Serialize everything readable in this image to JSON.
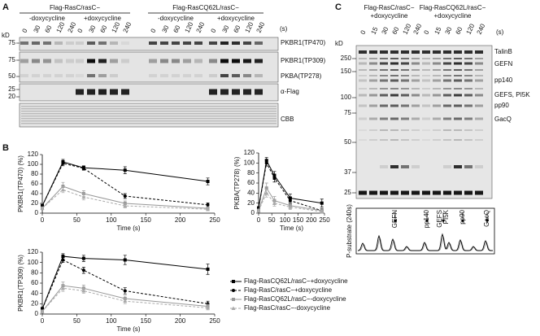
{
  "panel_a": {
    "label": "A",
    "strains": [
      "Flag-RasC/rasC−",
      "Flag-RasCQ62L/rasC−"
    ],
    "conditions": [
      "-doxycycline",
      "+doxycycline"
    ],
    "times": [
      "0",
      "30",
      "60",
      "120",
      "240"
    ],
    "time_unit": "(s)",
    "mass_unit": "kD",
    "markers": [
      "75",
      "75",
      "50",
      "25",
      "20"
    ],
    "blot_labels": [
      "PKBR1(TP470)",
      "PKBR1(TP309)",
      "PKBA(TP278)",
      "α-Flag",
      "CBB"
    ]
  },
  "panel_b": {
    "label": "B"
  },
  "panel_c": {
    "label": "C",
    "strains": [
      "Flag-RasC/rasC−",
      "Flag-RasCQ62L/rasC−"
    ],
    "condition": "+doxycycline",
    "times": [
      "0",
      "15",
      "30",
      "60",
      "120",
      "240"
    ],
    "time_unit": "(s)",
    "mass_unit": "kD",
    "markers": [
      "250",
      "150",
      "100",
      "75",
      "50",
      "37",
      "25"
    ],
    "band_labels": [
      "TalinB",
      "GEFN",
      "pp140",
      "GEFS, PI5K",
      "pp90",
      "GacQ"
    ],
    "trace_ylabel": "P-substrate (240s)",
    "trace_labels": [
      "GEFN",
      "pp140",
      "GEFS",
      "PI5K",
      "pp90",
      "GacQ"
    ]
  },
  "chart_data": [
    {
      "type": "line",
      "xlabel": "Time (s)",
      "ylabel": "PKBR1(TP470) (%)",
      "x": [
        0,
        30,
        60,
        120,
        240
      ],
      "xlim": [
        0,
        250
      ],
      "ylim": [
        0,
        120
      ],
      "xticks": [
        0,
        50,
        100,
        150,
        200,
        250
      ],
      "yticks": [
        0,
        20,
        40,
        60,
        80,
        100,
        120
      ],
      "series": [
        {
          "name": "Flag-RasCQ62L/rasC−+doxycycline",
          "color": "#000000",
          "linestyle": "solid",
          "marker": "square",
          "values": [
            15,
            105,
            93,
            88,
            65
          ],
          "errors": [
            3,
            5,
            4,
            7,
            7
          ]
        },
        {
          "name": "Flag-RasC/rasC−+doxycycline",
          "color": "#000000",
          "linestyle": "dashed",
          "marker": "circle",
          "values": [
            15,
            102,
            92,
            35,
            17
          ],
          "errors": [
            3,
            5,
            4,
            5,
            4
          ]
        },
        {
          "name": "Flag-RasCQ62L/rasC−-doxycycline",
          "color": "#999999",
          "linestyle": "solid",
          "marker": "square",
          "values": [
            10,
            55,
            40,
            20,
            10
          ],
          "errors": [
            3,
            8,
            6,
            5,
            3
          ]
        },
        {
          "name": "Flag-RasC/rasC−-doxycycline",
          "color": "#aaaaaa",
          "linestyle": "dashed",
          "marker": "triangle",
          "values": [
            10,
            48,
            33,
            15,
            8
          ],
          "errors": [
            3,
            6,
            6,
            4,
            3
          ]
        }
      ]
    },
    {
      "type": "line",
      "xlabel": "Time (s)",
      "ylabel": "PKBA(TP278) (%)",
      "x": [
        0,
        30,
        60,
        120,
        240
      ],
      "xlim": [
        0,
        250
      ],
      "ylim": [
        0,
        120
      ],
      "xticks": [
        0,
        50,
        100,
        150,
        200,
        250
      ],
      "yticks": [
        0,
        20,
        40,
        60,
        80,
        100,
        120
      ],
      "series": [
        {
          "name": "Flag-RasCQ62L/rasC−+doxycycline",
          "color": "#000000",
          "linestyle": "solid",
          "marker": "square",
          "values": [
            10,
            105,
            75,
            30,
            20
          ],
          "errors": [
            3,
            6,
            8,
            8,
            8
          ]
        },
        {
          "name": "Flag-RasC/rasC−+doxycycline",
          "color": "#000000",
          "linestyle": "dashed",
          "marker": "circle",
          "values": [
            10,
            100,
            70,
            25,
            5
          ],
          "errors": [
            3,
            6,
            8,
            6,
            4
          ]
        },
        {
          "name": "Flag-RasCQ62L/rasC−-doxycycline",
          "color": "#999999",
          "linestyle": "solid",
          "marker": "square",
          "values": [
            5,
            50,
            25,
            15,
            5
          ],
          "errors": [
            3,
            10,
            8,
            6,
            3
          ]
        },
        {
          "name": "Flag-RasC/rasC−-doxycycline",
          "color": "#aaaaaa",
          "linestyle": "dashed",
          "marker": "triangle",
          "values": [
            5,
            40,
            20,
            12,
            3
          ],
          "errors": [
            3,
            8,
            6,
            5,
            3
          ]
        }
      ]
    },
    {
      "type": "line",
      "xlabel": "Time (s)",
      "ylabel": "PKBR1(TP309) (%)",
      "legend": "right",
      "x": [
        0,
        30,
        60,
        120,
        240
      ],
      "xlim": [
        0,
        250
      ],
      "ylim": [
        0,
        120
      ],
      "xticks": [
        0,
        50,
        100,
        150,
        200,
        250
      ],
      "yticks": [
        0,
        20,
        40,
        60,
        80,
        100,
        120
      ],
      "series": [
        {
          "name": "Flag-RasCQ62L/rasC−+doxycycline",
          "color": "#000000",
          "linestyle": "solid",
          "marker": "square",
          "values": [
            10,
            112,
            108,
            105,
            87
          ],
          "errors": [
            3,
            5,
            6,
            9,
            10
          ]
        },
        {
          "name": "Flag-RasC/rasC−+doxycycline",
          "color": "#000000",
          "linestyle": "dashed",
          "marker": "circle",
          "values": [
            10,
            105,
            85,
            45,
            20
          ],
          "errors": [
            3,
            5,
            6,
            6,
            5
          ]
        },
        {
          "name": "Flag-RasCQ62L/rasC−-doxycycline",
          "color": "#999999",
          "linestyle": "solid",
          "marker": "square",
          "values": [
            5,
            55,
            50,
            30,
            15
          ],
          "errors": [
            3,
            7,
            6,
            5,
            4
          ]
        },
        {
          "name": "Flag-RasC/rasC−-doxycycline",
          "color": "#aaaaaa",
          "linestyle": "dashed",
          "marker": "triangle",
          "values": [
            5,
            50,
            45,
            25,
            12
          ],
          "errors": [
            3,
            6,
            5,
            5,
            4
          ]
        }
      ]
    }
  ]
}
